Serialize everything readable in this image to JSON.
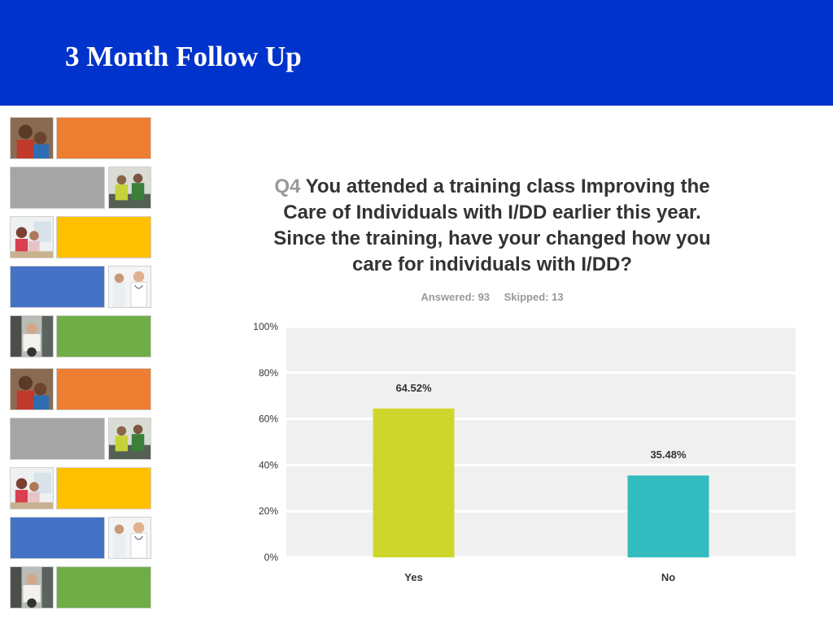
{
  "slide": {
    "title": "3 Month Follow Up"
  },
  "survey": {
    "question_number": "Q4",
    "question_text": "You attended a training class Improving the Care of Individuals with I/DD earlier this year. Since the training, have your changed how you care for individuals with I/DD?",
    "answered": "Answered: 93",
    "skipped": "Skipped: 13"
  },
  "chart_data": {
    "type": "bar",
    "title": "",
    "xlabel": "",
    "ylabel": "",
    "categories": [
      "Yes",
      "No"
    ],
    "values": [
      64.52,
      35.48
    ],
    "value_labels": [
      "64.52%",
      "35.48%"
    ],
    "colors": [
      "#cfd62b",
      "#33bcbf"
    ],
    "ylim": [
      0,
      100
    ],
    "yticks": [
      0,
      20,
      40,
      60,
      80,
      100
    ],
    "ytick_labels": [
      "0%",
      "20%",
      "40%",
      "60%",
      "80%",
      "100%"
    ],
    "grid": true
  },
  "decor": {
    "tile_colors": [
      "#ed7d31",
      "#a5a5a5",
      "#ffc000",
      "#4472c4",
      "#70ad47"
    ],
    "images": [
      "woman-and-child-photo",
      "workers-photo",
      "children-photo",
      "doctors-photo",
      "senior-man-photo"
    ]
  }
}
